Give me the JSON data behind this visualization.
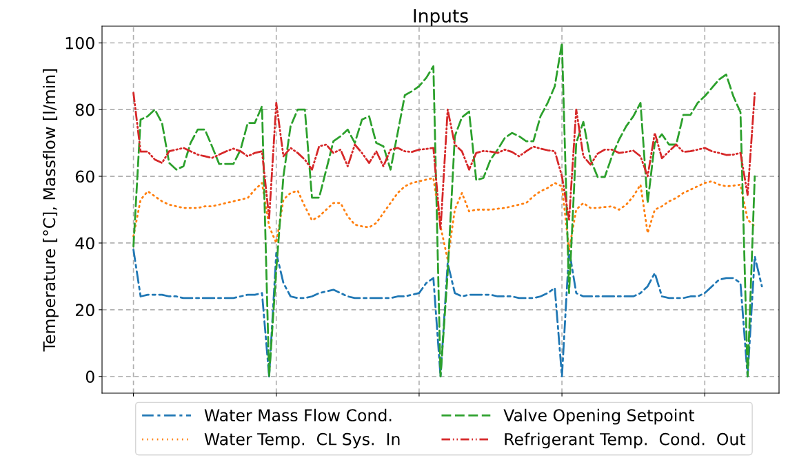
{
  "chart_data": {
    "type": "line",
    "title": "Inputs",
    "ylabel": "Temperature [°C], Massflow [l/min]",
    "categories": [
      null,
      null,
      null,
      null,
      null,
      null,
      null,
      null,
      null,
      null,
      null,
      null,
      null,
      null,
      null,
      null,
      null,
      null,
      null,
      null,
      null,
      null,
      null,
      null,
      null,
      null,
      null,
      null,
      null,
      null,
      null,
      null,
      null,
      null,
      null,
      null,
      null,
      null,
      null,
      null,
      null,
      null,
      null,
      null,
      null,
      null,
      null,
      null,
      null,
      null,
      null,
      null,
      null,
      null,
      null,
      null,
      null,
      null,
      null,
      null,
      null,
      null,
      null,
      null,
      null,
      null,
      null,
      null,
      null,
      null,
      null,
      null,
      null,
      null,
      null,
      null,
      null,
      null,
      null,
      null,
      null,
      null,
      null,
      null,
      null,
      null,
      null,
      null,
      null
    ],
    "ylim": [
      -5,
      105
    ],
    "yticks": [
      0,
      20,
      40,
      60,
      80,
      100
    ],
    "grid": true,
    "legend": "bottom",
    "series": [
      {
        "name": "Water Mass Flow Cond.",
        "color": "#1f77b4",
        "line_style": "dashdot",
        "values": [
          38,
          24,
          24.5,
          24.5,
          24.5,
          24,
          24,
          23.5,
          23.5,
          23.5,
          23.5,
          23.5,
          23.5,
          23.5,
          23.5,
          24,
          24.5,
          24.5,
          25,
          0,
          37,
          28,
          24,
          23.5,
          23.5,
          24,
          25,
          25.5,
          26,
          25,
          24,
          23.5,
          23.5,
          23.5,
          23.5,
          23.5,
          23.5,
          24,
          24,
          24.5,
          25,
          28,
          29.5,
          0,
          34,
          25,
          24,
          24.5,
          24.5,
          24.5,
          24.5,
          24,
          24,
          24,
          23.5,
          23.5,
          23.5,
          24,
          25,
          26.5,
          0,
          38,
          25,
          24,
          24,
          24,
          24,
          24,
          24,
          24,
          24,
          25,
          27,
          31,
          24,
          23.5,
          23.5,
          23.5,
          24,
          24,
          25,
          27,
          29,
          29.5,
          29.5,
          28,
          0,
          36,
          27
        ]
      },
      {
        "name": "Water Temp.  CL Sys.  In",
        "color": "#ff7f0e",
        "line_style": "dotted",
        "values": [
          42,
          53,
          55.5,
          54,
          52.5,
          51.5,
          51,
          50.5,
          50.5,
          50.5,
          51,
          51,
          51.5,
          52,
          52.5,
          53,
          53.5,
          56,
          58,
          45,
          40,
          53,
          55,
          55.7,
          51,
          46.8,
          48,
          50,
          52,
          52,
          48,
          45.5,
          45,
          44.7,
          46,
          49,
          52,
          55,
          57,
          58,
          58.5,
          59,
          59.5,
          45,
          35,
          50,
          55,
          49.5,
          50,
          50,
          50,
          50.3,
          50.5,
          51,
          51.5,
          52,
          54,
          55.5,
          56.5,
          58,
          57,
          38,
          50,
          52,
          50.5,
          50.5,
          50.8,
          51,
          50,
          51.5,
          54,
          57.5,
          43,
          50,
          51,
          52.5,
          53.5,
          55,
          56,
          57,
          58,
          58.5,
          57.5,
          57,
          57.2,
          57.5,
          47,
          45,
          null
        ]
      },
      {
        "name": "Valve Opening Setpoint",
        "color": "#2ca02c",
        "line_style": "dashed",
        "values": [
          39,
          77,
          78,
          80,
          76,
          64,
          62,
          63,
          70,
          74,
          74,
          69,
          63.7,
          63.7,
          63.7,
          68,
          76,
          76,
          81,
          0,
          32,
          60,
          75,
          80,
          80,
          53.6,
          53.6,
          62,
          70.5,
          72,
          74,
          70,
          77,
          78,
          70,
          69,
          62,
          73,
          84.3,
          85.5,
          87,
          89.5,
          93,
          0,
          31,
          72,
          77.7,
          79.4,
          58.8,
          59.5,
          65,
          68,
          71.5,
          73,
          72,
          70.5,
          70.5,
          78,
          82,
          87,
          100,
          25,
          70,
          76.3,
          65,
          59.8,
          59.8,
          66,
          71,
          75,
          78,
          82,
          52,
          70,
          72.6,
          69.5,
          69.5,
          78.4,
          78.4,
          82,
          84,
          86.5,
          89,
          90.5,
          84,
          79.2,
          0,
          60,
          null
        ]
      },
      {
        "name": "Refrigerant Temp.  Cond.  Out",
        "color": "#d62728",
        "line_style": "dashdotdot",
        "values": [
          85,
          67.4,
          67.4,
          65,
          64,
          67.5,
          68,
          68.5,
          67.5,
          66.5,
          66,
          65.5,
          66.5,
          67.5,
          68.3,
          67.5,
          66,
          67,
          67.5,
          47.4,
          82,
          66,
          68.5,
          67,
          65,
          62,
          69,
          69.5,
          67,
          68,
          63,
          69.5,
          67,
          64,
          67.5,
          63,
          68,
          68.5,
          67.5,
          67.3,
          68,
          68.2,
          68.5,
          44,
          80,
          69.5,
          67.5,
          62,
          67,
          67.6,
          67.4,
          67,
          68,
          67.3,
          66,
          67.5,
          68.9,
          68.3,
          67.8,
          67.5,
          60,
          47,
          80,
          66,
          63.5,
          66.8,
          68,
          68,
          67,
          67.3,
          67.7,
          66,
          60,
          73,
          65.4,
          67.5,
          69.5,
          67.3,
          67.5,
          68,
          68.5,
          67.5,
          67,
          66.4,
          66.5,
          67,
          54.4,
          85,
          null
        ]
      }
    ]
  }
}
